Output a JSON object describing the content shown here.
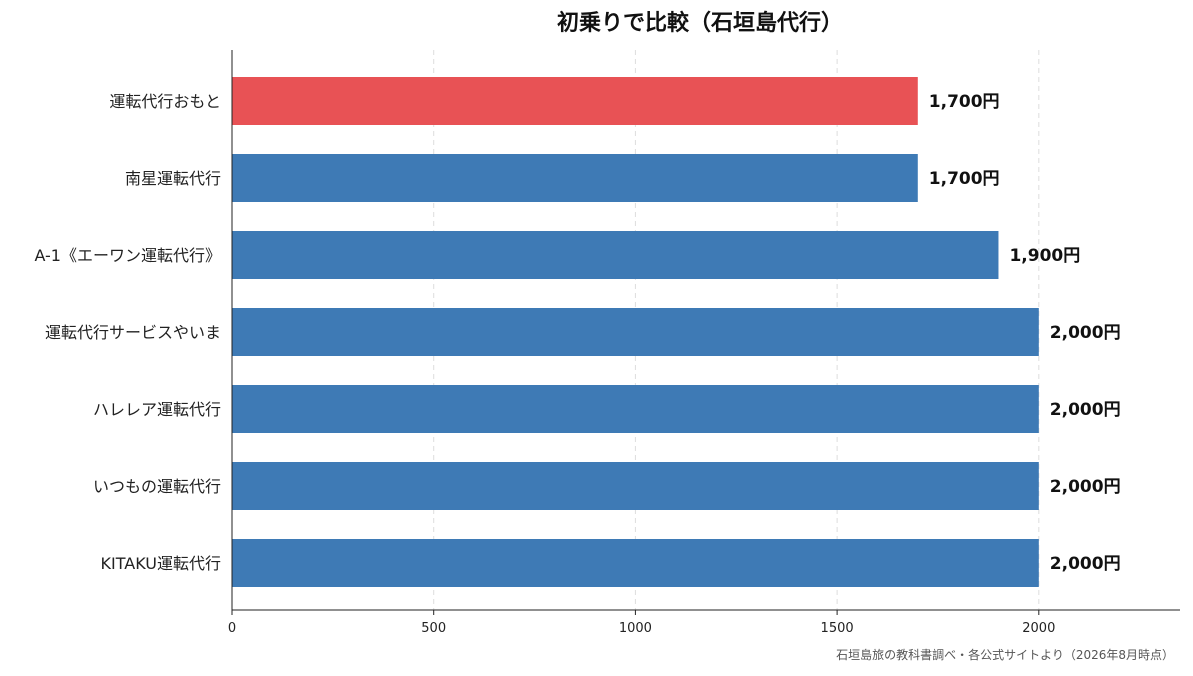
{
  "chart_data": {
    "type": "bar",
    "orientation": "horizontal",
    "title": "初乗りで比較（石垣島代行）",
    "categories": [
      "運転代行おもと",
      "南星運転代行",
      "A-1《エーワン運転代行》",
      "運転代行サービスやいま",
      "ハレレア運転代行",
      "いつもの運転代行",
      "KITAKU運転代行"
    ],
    "values": [
      1700,
      1700,
      1900,
      2000,
      2000,
      2000,
      2000
    ],
    "value_labels": [
      "1,700円",
      "1,700円",
      "1,900円",
      "2,000円",
      "2,000円",
      "2,000円",
      "2,000円"
    ],
    "highlight_index": 0,
    "colors": {
      "bar": "#3e7ab5",
      "highlight": "#e85255",
      "grid": "#dddddd",
      "axis": "#222222"
    },
    "xlim": [
      0,
      2350
    ],
    "xticks": [
      0,
      500,
      1000,
      1500,
      2000
    ],
    "xtick_labels": [
      "0",
      "500",
      "1000",
      "1500",
      "2000"
    ],
    "grid": "x-dashed",
    "xlabel": "",
    "ylabel": "",
    "source_note": "石垣島旅の教科書調べ・各公式サイトより（2026年8月時点）"
  }
}
